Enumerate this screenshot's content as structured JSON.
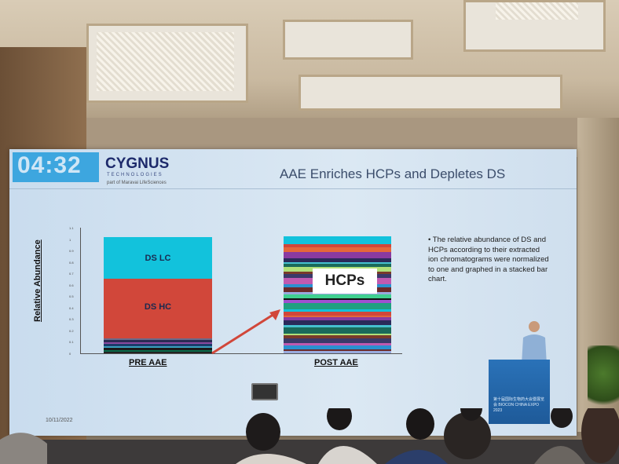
{
  "slide": {
    "timer": "04:32",
    "brand": "CYGNUS",
    "brand_sub": "TECHNOLOGIES",
    "brand_part": "part of Maravai LifeSciences",
    "title": "AAE Enriches HCPs and Depletes DS",
    "y_axis_label": "Relative Abundance",
    "y_ticks": [
      "1.1",
      "1",
      "0.9",
      "0.8",
      "0.7",
      "0.6",
      "0.5",
      "0.4",
      "0.3",
      "0.2",
      "0.1",
      "0"
    ],
    "bars": [
      {
        "label": "PRE AAE",
        "segments": [
          {
            "name": "DS LC",
            "from": 0.64,
            "to": 1.0,
            "color": "#12c2dc"
          },
          {
            "name": "DS HC",
            "from": 0.13,
            "to": 0.64,
            "color": "#d1473a"
          }
        ]
      },
      {
        "label": "POST AAE",
        "overlay": "HCPs"
      }
    ],
    "bullet": "The relative abundance of DS and HCPs according to their extracted ion chromatograms were normalized to one and graphed in a stacked bar chart.",
    "date": "10/11/2022"
  },
  "podium": {
    "text": "第十届国际生物药大会暨展览会 BIOCON CHINA EXPO 2023"
  },
  "colors": {
    "slide_bg": "#d6e5f2",
    "logo_blue": "#3da6df",
    "arrow": "#d1473a",
    "podium": "#2467ac"
  }
}
